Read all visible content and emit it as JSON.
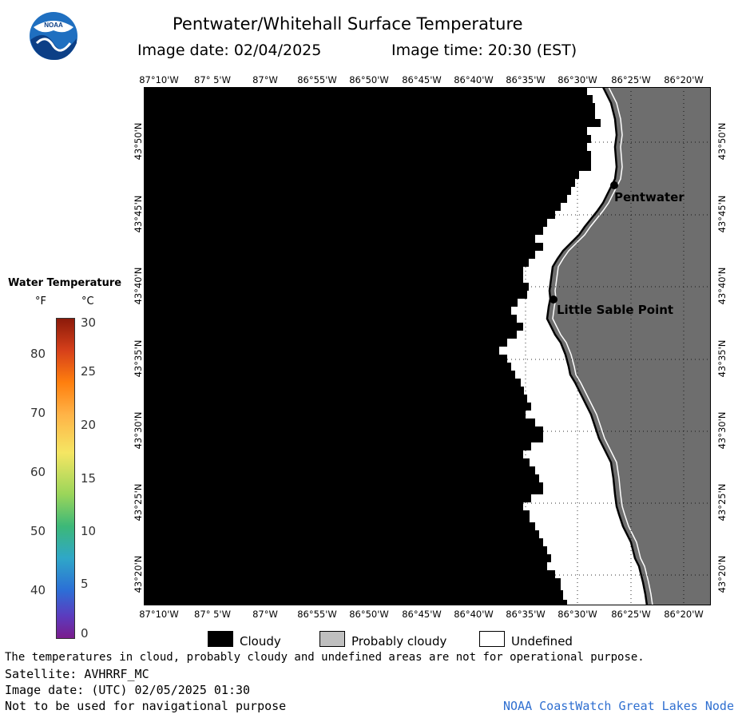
{
  "header": {
    "title": "Pentwater/Whitehall Surface Temperature",
    "image_date": "Image date: 02/04/2025",
    "image_time": "Image time: 20:30 (EST)",
    "logo_text": "NOAA"
  },
  "axes": {
    "longitudes": [
      "87°10'W",
      "87° 5'W",
      "87°W",
      "86°55'W",
      "86°50'W",
      "86°45'W",
      "86°40'W",
      "86°35'W",
      "86°30'W",
      "86°25'W",
      "86°20'W"
    ],
    "latitudes": [
      "43°50'N",
      "43°45'N",
      "43°40'N",
      "43°35'N",
      "43°30'N",
      "43°25'N",
      "43°20'N"
    ]
  },
  "places": {
    "pentwater": "Pentwater",
    "little_sable": "Little Sable Point"
  },
  "legend": {
    "title": "Water Temperature",
    "unit_f": "°F",
    "unit_c": "°C",
    "f_ticks": [
      "80",
      "70",
      "60",
      "50",
      "40"
    ],
    "c_ticks": [
      "30",
      "25",
      "20",
      "15",
      "10",
      "5",
      "0"
    ]
  },
  "key": {
    "cloudy": "Cloudy",
    "probably_cloudy": "Probably cloudy",
    "undefined": "Undefined"
  },
  "colors": {
    "cloudy": "#000000",
    "probably_cloudy": "#bfbfbf",
    "undefined": "#ffffff",
    "land": "#6e6e6e"
  },
  "footer": {
    "note": "The temperatures in cloud, probably cloudy and undefined areas are not for operational purpose.",
    "satellite": "Satellite: AVHRRF_MC",
    "utc_date": "Image date: (UTC) 02/05/2025  01:30",
    "nav_warning": "Not to be used for navigational purpose",
    "credit": "NOAA CoastWatch Great Lakes Node"
  }
}
